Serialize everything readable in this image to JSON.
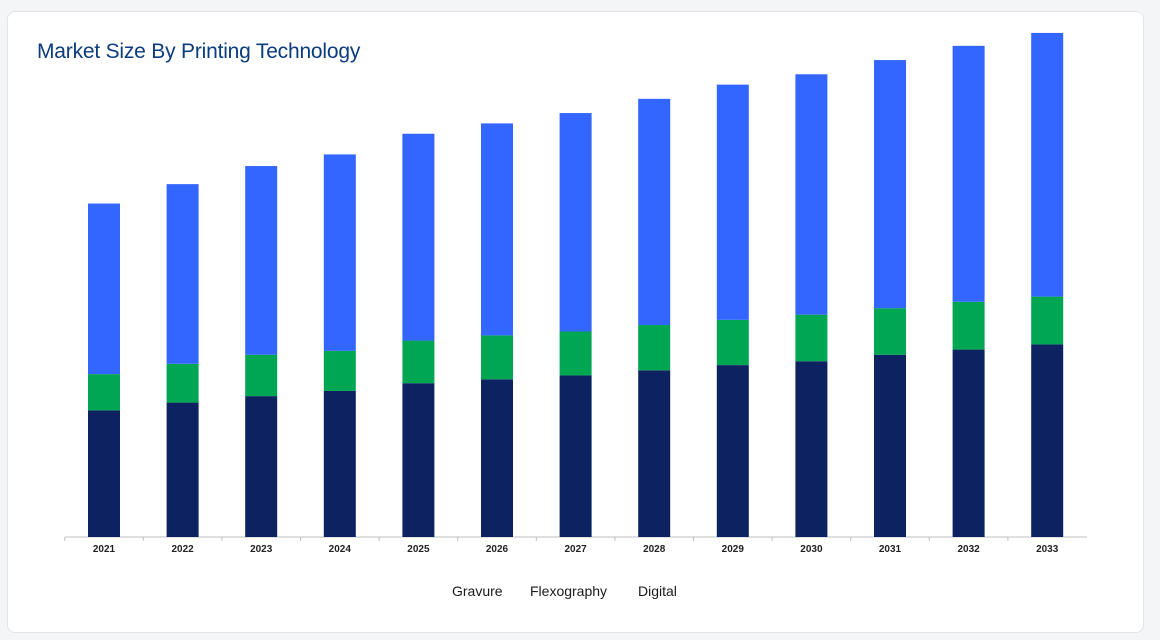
{
  "card": {
    "title": "Market Size By Printing Technology"
  },
  "chart_data": {
    "type": "bar",
    "stacked": true,
    "categories": [
      "2021",
      "2022",
      "2023",
      "2024",
      "2025",
      "2026",
      "2027",
      "2028",
      "2029",
      "2030",
      "2031",
      "2032",
      "2033"
    ],
    "series": [
      {
        "name": "Gravure",
        "color": "#0d2361",
        "values": [
          98,
          104,
          109,
          113,
          119,
          122,
          125,
          129,
          133,
          136,
          141,
          145,
          149
        ]
      },
      {
        "name": "Flexography",
        "color": "#00a651",
        "values": [
          28,
          30,
          32,
          31,
          33,
          34,
          34,
          35,
          35,
          36,
          36,
          37,
          37
        ]
      },
      {
        "name": "Digital",
        "color": "#3366ff",
        "values": [
          132,
          139,
          146,
          152,
          160,
          164,
          169,
          175,
          182,
          186,
          192,
          198,
          204
        ]
      }
    ],
    "legend_position": "bottom-center",
    "grid": false,
    "ylim": [
      0,
      400
    ]
  }
}
